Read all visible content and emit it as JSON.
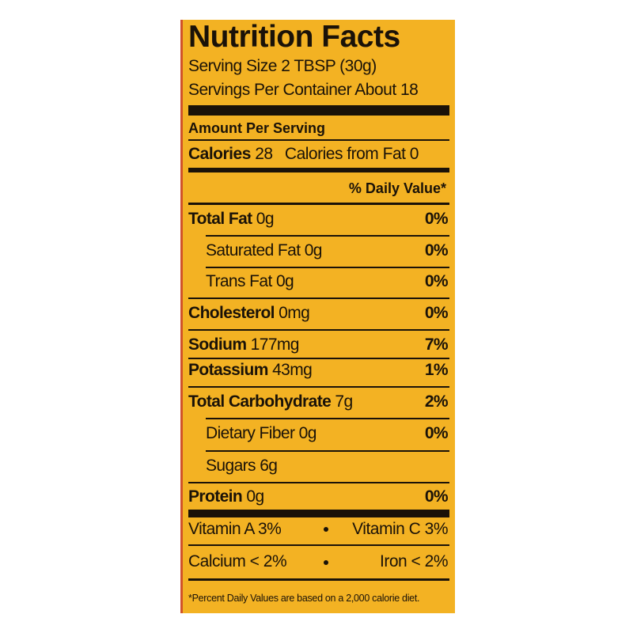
{
  "header": {
    "title": "Nutrition Facts",
    "serving_size": "Serving Size 2 TBSP (30g)",
    "servings_per_container": "Servings Per Container About 18"
  },
  "amount_per_serving": "Amount Per Serving",
  "calories": {
    "label": "Calories",
    "value": "28",
    "from_fat": "Calories from Fat 0"
  },
  "daily_value_header": "% Daily Value*",
  "nutrients": [
    {
      "name": "Total Fat",
      "amount": "0g",
      "dv": "0%"
    },
    {
      "name": "Saturated Fat",
      "amount": "0g",
      "dv": "0%"
    },
    {
      "name": "Trans Fat",
      "amount": "0g",
      "dv": "0%"
    },
    {
      "name": "Cholesterol",
      "amount": "0mg",
      "dv": "0%"
    },
    {
      "name": "Sodium",
      "amount": "177mg",
      "dv": "7%"
    },
    {
      "name": "Potassium",
      "amount": "43mg",
      "dv": "1%"
    },
    {
      "name": "Total Carbohydrate",
      "amount": "7g",
      "dv": "2%"
    },
    {
      "name": "Dietary Fiber",
      "amount": "0g",
      "dv": "0%"
    },
    {
      "name": "Sugars",
      "amount": "6g"
    },
    {
      "name": "Protein",
      "amount": "0g",
      "dv": "0%"
    }
  ],
  "vitamins": [
    [
      "Vitamin A 3%",
      "Vitamin C 3%"
    ],
    [
      "Calcium < 2%",
      "Iron < 2%"
    ]
  ],
  "footnote": "*Percent Daily Values are based on a 2,000 calorie diet."
}
